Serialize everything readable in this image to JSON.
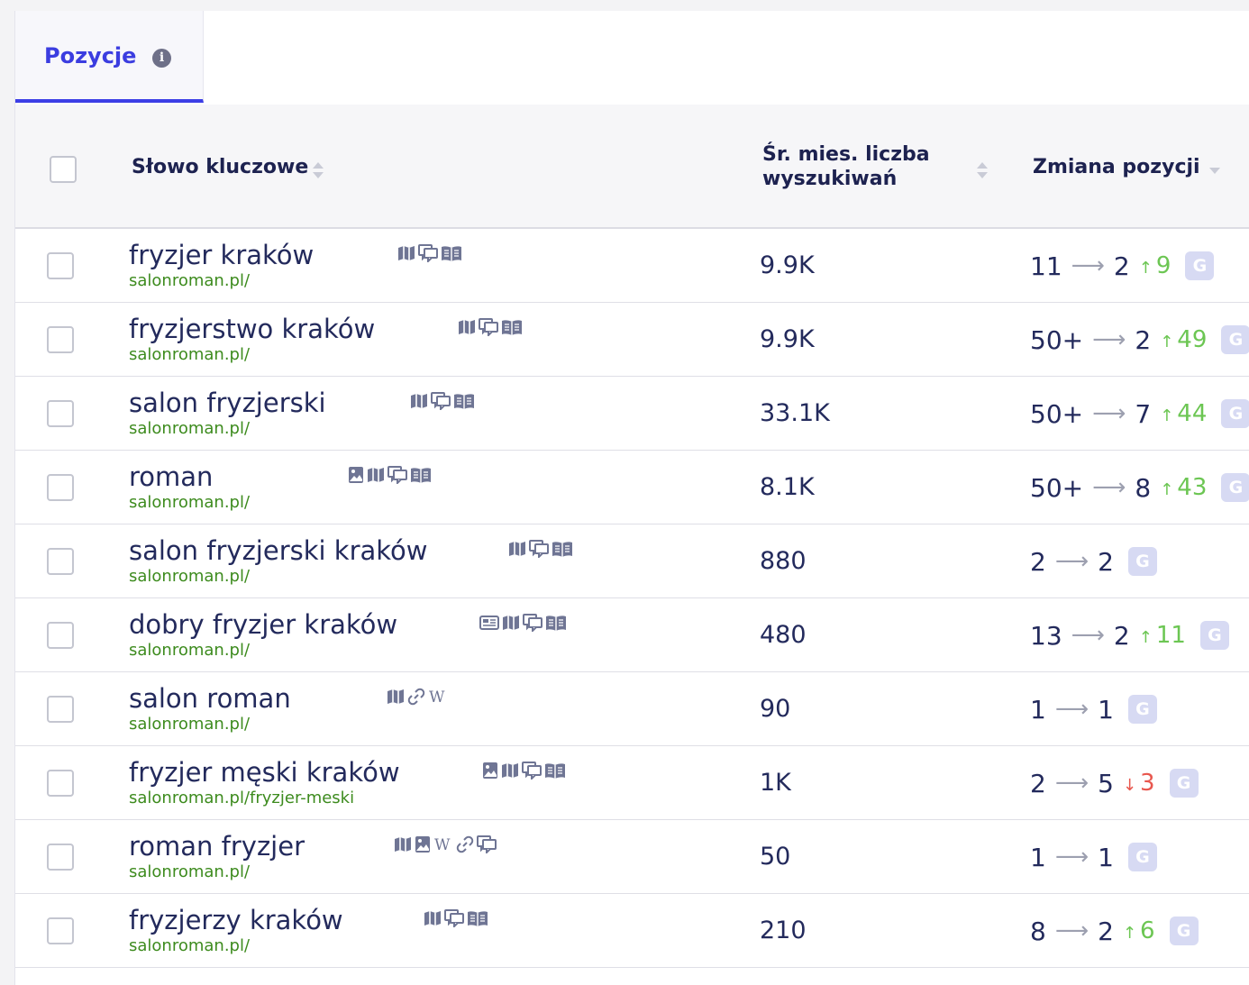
{
  "tabs": {
    "active_label": "Pozycje"
  },
  "table": {
    "headers": {
      "keyword": "Słowo kluczowe",
      "volume": "Śr. mies. liczba wyszukiwań",
      "change": "Zmiana pozycji"
    },
    "rows": [
      {
        "keyword": "fryzjer kraków",
        "url": "salonroman.pl/",
        "features": [
          "map-icon",
          "reviews-icon",
          "knowledge-panel-icon"
        ],
        "volume": "9.9K",
        "from": "11",
        "to": "2",
        "delta": "9",
        "direction": "up"
      },
      {
        "keyword": "fryzjerstwo kraków",
        "url": "salonroman.pl/",
        "features": [
          "map-icon",
          "reviews-icon",
          "knowledge-panel-icon"
        ],
        "volume": "9.9K",
        "from": "50+",
        "to": "2",
        "delta": "49",
        "direction": "up"
      },
      {
        "keyword": "salon fryzjerski",
        "url": "salonroman.pl/",
        "features": [
          "map-icon",
          "reviews-icon",
          "knowledge-panel-icon"
        ],
        "volume": "33.1K",
        "from": "50+",
        "to": "7",
        "delta": "44",
        "direction": "up"
      },
      {
        "keyword": "roman",
        "url": "salonroman.pl/",
        "features": [
          "image-icon",
          "map-icon",
          "reviews-icon",
          "knowledge-panel-icon"
        ],
        "volume": "8.1K",
        "from": "50+",
        "to": "8",
        "delta": "43",
        "direction": "up"
      },
      {
        "keyword": "salon fryzjerski kraków",
        "url": "salonroman.pl/",
        "features": [
          "map-icon",
          "reviews-icon",
          "knowledge-panel-icon"
        ],
        "volume": "880",
        "from": "2",
        "to": "2",
        "delta": "",
        "direction": "none"
      },
      {
        "keyword": "dobry fryzjer kraków",
        "url": "salonroman.pl/",
        "features": [
          "news-icon",
          "map-icon",
          "reviews-icon",
          "knowledge-panel-icon"
        ],
        "volume": "480",
        "from": "13",
        "to": "2",
        "delta": "11",
        "direction": "up"
      },
      {
        "keyword": "salon roman",
        "url": "salonroman.pl/",
        "features": [
          "map-icon",
          "sitelinks-icon",
          "wikipedia-icon"
        ],
        "volume": "90",
        "from": "1",
        "to": "1",
        "delta": "",
        "direction": "none"
      },
      {
        "keyword": "fryzjer męski kraków",
        "url": "salonroman.pl/fryzjer-meski",
        "features": [
          "image-icon",
          "map-icon",
          "reviews-icon",
          "knowledge-panel-icon"
        ],
        "volume": "1K",
        "from": "2",
        "to": "5",
        "delta": "3",
        "direction": "down"
      },
      {
        "keyword": "roman fryzjer",
        "url": "salonroman.pl/",
        "features": [
          "map-icon",
          "image-icon",
          "wikipedia-icon",
          "sitelinks-icon",
          "reviews-icon"
        ],
        "volume": "50",
        "from": "1",
        "to": "1",
        "delta": "",
        "direction": "none"
      },
      {
        "keyword": "fryzjerzy kraków",
        "url": "salonroman.pl/",
        "features": [
          "map-icon",
          "reviews-icon",
          "knowledge-panel-icon"
        ],
        "volume": "210",
        "from": "8",
        "to": "2",
        "delta": "6",
        "direction": "up"
      }
    ]
  },
  "engine_badge": "G",
  "colors": {
    "accent": "#3b3de0",
    "url": "#3d8b1e",
    "up": "#6cc653",
    "down": "#e8574e",
    "badge": "#d7daf3"
  }
}
